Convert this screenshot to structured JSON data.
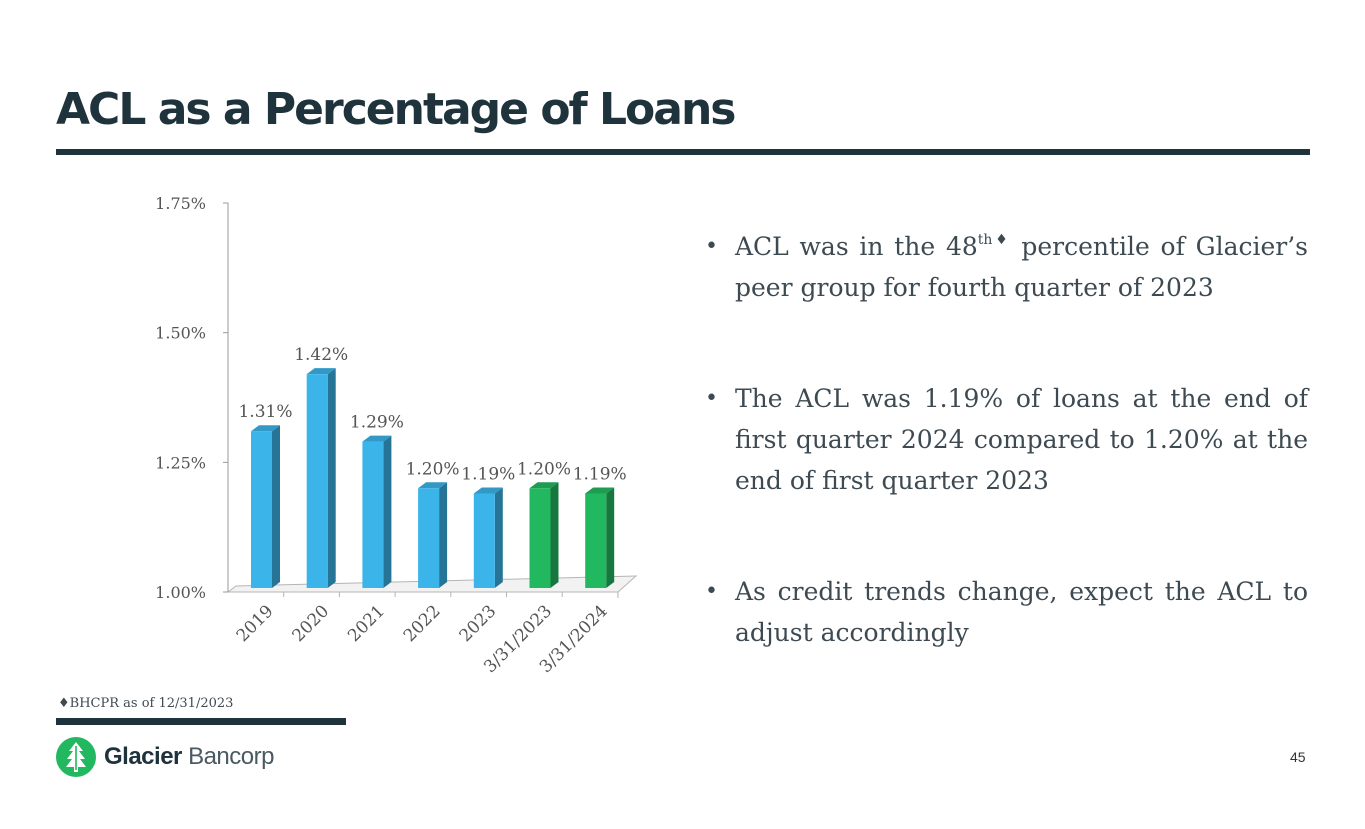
{
  "slide": {
    "title": "ACL as a Percentage of Loans",
    "page_number": "45",
    "footnote": "♦BHCPR as of 12/31/2023",
    "logo": {
      "brand_bold": "Glacier",
      "brand_light": "Bancorp"
    }
  },
  "bullets": [
    {
      "pre": "ACL was in the 48",
      "sup": "th♦",
      "post": " percentile of Glacier’s peer group for fourth quarter of 2023"
    },
    {
      "text": "The ACL was 1.19% of loans at the end of first quarter 2024 compared to 1.20% at the end of first quarter 2023"
    },
    {
      "text": "As credit trends change, expect the ACL to adjust accordingly"
    }
  ],
  "colors": {
    "title": "#1e333b",
    "bar_blue": "#3bb4e9",
    "bar_green": "#22b860"
  },
  "chart_data": {
    "type": "bar",
    "categories": [
      "2019",
      "2020",
      "2021",
      "2022",
      "2023",
      "3/31/2023",
      "3/31/2024"
    ],
    "values": [
      1.31,
      1.42,
      1.29,
      1.2,
      1.19,
      1.2,
      1.19
    ],
    "data_labels": [
      "1.31%",
      "1.42%",
      "1.29%",
      "1.20%",
      "1.19%",
      "1.20%",
      "1.19%"
    ],
    "bar_colors": [
      "#3bb4e9",
      "#3bb4e9",
      "#3bb4e9",
      "#3bb4e9",
      "#3bb4e9",
      "#22b860",
      "#22b860"
    ],
    "ylim": [
      1.0,
      1.75
    ],
    "yticks": [
      1.0,
      1.25,
      1.5,
      1.75
    ],
    "ytick_labels": [
      "1.00%",
      "1.25%",
      "1.50%",
      "1.75%"
    ],
    "grid": false,
    "style": "3d-columns"
  }
}
